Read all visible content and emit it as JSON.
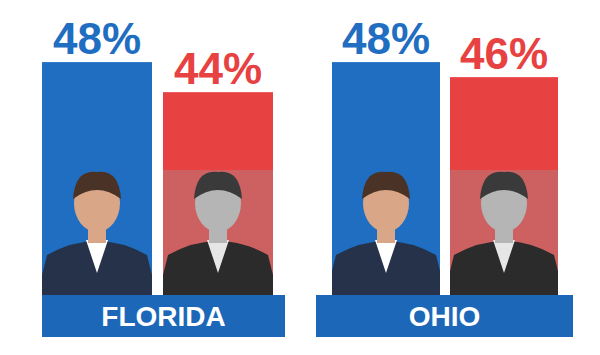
{
  "chart_data": [
    {
      "type": "bar",
      "title": "FLORIDA",
      "categories": [
        null,
        null
      ],
      "values": [
        48,
        44
      ],
      "value_labels": [
        "48%",
        "44%"
      ],
      "colors": [
        "#1f6ec1",
        "#e84142"
      ],
      "ylim": [
        17,
        56
      ],
      "data_labels": true,
      "tick_labels": false,
      "grid": false
    },
    {
      "type": "bar",
      "title": "OHIO",
      "categories": [
        null,
        null
      ],
      "values": [
        48,
        46
      ],
      "value_labels": [
        "48%",
        "46%"
      ],
      "colors": [
        "#1f6ec1",
        "#e84142"
      ],
      "ylim": [
        17,
        56
      ],
      "data_labels": true,
      "tick_labels": false,
      "grid": false
    }
  ]
}
